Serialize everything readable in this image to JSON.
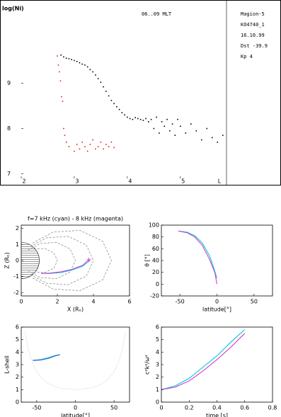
{
  "chart_data": [
    {
      "type": "scatter",
      "title": "06..09 MLT",
      "ylabel": "log(Ni)",
      "xlabel": "L",
      "annotations": [
        "Magion-5",
        "KO4740_1",
        "16.10.99",
        "Dst -39.9",
        "Kp    4"
      ],
      "xlim": [
        2,
        5.87
      ],
      "ylim": [
        6.9,
        10.6
      ],
      "xticks": [
        2,
        3,
        4,
        5
      ],
      "yticks": [
        7,
        8,
        9
      ],
      "series": [
        {
          "color": "#000000",
          "x": [
            2.75,
            2.8,
            2.85,
            2.9,
            2.95,
            3.0,
            3.05,
            3.1,
            3.15,
            3.2,
            3.25,
            3.3,
            3.35,
            3.4,
            3.45,
            3.5,
            3.55,
            3.6,
            3.65,
            3.7,
            3.75,
            3.8,
            3.85,
            3.9,
            3.95,
            4.0,
            4.05,
            4.1,
            4.15,
            4.2,
            4.25,
            4.3,
            4.35,
            4.4,
            4.45,
            4.5,
            4.55,
            4.6,
            4.65,
            4.7,
            4.75,
            4.8,
            4.85,
            4.9,
            4.95,
            5.0,
            5.1,
            5.2,
            5.3,
            5.4,
            5.5,
            5.6,
            5.7,
            5.8
          ],
          "values": [
            9.62,
            9.58,
            9.55,
            9.54,
            9.52,
            9.5,
            9.48,
            9.45,
            9.42,
            9.4,
            9.36,
            9.3,
            9.25,
            9.18,
            9.1,
            9.02,
            8.92,
            8.82,
            8.72,
            8.62,
            8.55,
            8.48,
            8.42,
            8.35,
            8.3,
            8.25,
            8.22,
            8.2,
            8.24,
            8.22,
            8.2,
            8.18,
            8.22,
            8.15,
            8.2,
            8.0,
            8.25,
            7.9,
            8.15,
            8.05,
            8.2,
            7.95,
            8.1,
            7.85,
            8.2,
            8.05,
            7.9,
            8.1,
            7.95,
            7.75,
            8.0,
            7.8,
            7.7,
            7.85
          ]
        },
        {
          "color": "#e02020",
          "x": [
            2.68,
            2.7,
            2.72,
            2.74,
            2.76,
            2.78,
            2.8,
            2.82,
            2.85,
            2.9,
            3.0,
            3.05,
            3.1,
            3.15,
            3.2,
            3.25,
            3.3,
            3.35,
            3.4,
            3.45,
            3.5,
            3.55,
            3.6,
            3.65,
            3.7,
            3.75
          ],
          "values": [
            9.6,
            9.4,
            9.25,
            9.05,
            8.7,
            8.6,
            8.0,
            7.85,
            7.7,
            7.6,
            7.5,
            7.65,
            7.55,
            7.7,
            7.6,
            7.5,
            7.65,
            7.75,
            7.55,
            7.6,
            7.7,
            7.55,
            7.65,
            7.6,
            7.7,
            7.58
          ]
        }
      ]
    },
    {
      "type": "line",
      "title": "f=7 kHz (cyan) - 8 kHz (magenta)",
      "xlabel": "X (Rₑ)",
      "ylabel": "Z (Rₑ)",
      "xlim": [
        0,
        6
      ],
      "ylim": [
        -2.2,
        2.2
      ],
      "xticks": [
        0,
        2,
        4,
        6
      ],
      "yticks": [
        -2,
        -1,
        0,
        1,
        2
      ],
      "earth": true,
      "series": [
        {
          "color": "#808080",
          "dash": true,
          "x": [
            0.707,
            1.299,
            1.802,
            2,
            1.802,
            1.299,
            0.707
          ],
          "values": [
            0.707,
            0.75,
            0.483,
            0,
            -0.483,
            -0.75,
            -0.707
          ]
        },
        {
          "color": "#808080",
          "dash": true,
          "x": [
            0.375,
            1.061,
            1.949,
            2.704,
            3,
            2.704,
            1.949,
            1.061,
            0.375
          ],
          "values": [
            0.65,
            1.061,
            1.125,
            0.725,
            0,
            -0.725,
            -1.125,
            -1.061,
            -0.65
          ]
        },
        {
          "color": "#808080",
          "dash": true,
          "x": [
            0.5,
            1.414,
            2.598,
            3.605,
            4,
            3.605,
            2.598,
            1.414,
            0.5
          ],
          "values": [
            0.866,
            1.414,
            1.5,
            0.966,
            0,
            -0.966,
            -1.5,
            -1.414,
            -0.866
          ]
        },
        {
          "color": "#808080",
          "dash": true,
          "x": [
            0.625,
            1.768,
            3.248,
            4.506,
            5,
            4.506,
            3.248,
            1.768,
            0.625
          ],
          "values": [
            1.083,
            1.768,
            1.875,
            1.208,
            0,
            -1.208,
            -1.875,
            -1.768,
            -1.083
          ]
        },
        {
          "color": "#00c8d8",
          "x": [
            3.8,
            3.4,
            2.8,
            2.2,
            1.6,
            1.1
          ],
          "values": [
            0,
            -0.35,
            -0.6,
            -0.75,
            -0.8,
            -0.8
          ]
        },
        {
          "color": "#d040d0",
          "marker": true,
          "x": [
            3.75,
            3.4,
            2.8,
            2.2,
            1.6,
            1.1
          ],
          "values": [
            0.05,
            -0.3,
            -0.55,
            -0.7,
            -0.78,
            -0.8
          ]
        }
      ]
    },
    {
      "type": "line",
      "xlabel": "latitude[°]",
      "ylabel": "θ [°]",
      "xlim": [
        -75,
        75
      ],
      "ylim": [
        -20,
        100
      ],
      "xticks": [
        -50,
        0,
        50
      ],
      "yticks": [
        -20,
        0,
        20,
        40,
        60,
        80,
        100
      ],
      "series": [
        {
          "color": "#00c8d8",
          "x": [
            -52,
            -40,
            -30,
            -20,
            -10,
            -5,
            0
          ],
          "values": [
            90,
            88,
            82,
            70,
            48,
            30,
            10
          ]
        },
        {
          "color": "#d040d0",
          "x": [
            -52,
            -40,
            -30,
            -20,
            -10,
            -3,
            0
          ],
          "values": [
            90,
            87,
            80,
            66,
            42,
            20,
            0
          ]
        }
      ]
    },
    {
      "type": "line",
      "xlabel": "latitude[°]",
      "ylabel": "L-shell",
      "xlim": [
        -70,
        70
      ],
      "ylim": [
        0,
        6
      ],
      "xticks": [
        -50,
        0,
        50
      ],
      "yticks": [
        0,
        1,
        2,
        3,
        4,
        5,
        6
      ],
      "series": [
        {
          "color": "#b0b0b0",
          "dot": true,
          "x": [
            -65,
            -60,
            -55,
            -50,
            -40,
            -30,
            -20,
            0,
            20,
            30,
            40,
            50,
            55,
            60,
            65
          ],
          "values": [
            5.6,
            4,
            3.04,
            2.42,
            1.7,
            1.33,
            1.13,
            1,
            1.13,
            1.33,
            1.7,
            2.42,
            3.04,
            4,
            5.6
          ]
        },
        {
          "color": "#00c8d8",
          "x": [
            -55,
            -45,
            -35,
            -25,
            -20
          ],
          "values": [
            3.35,
            3.4,
            3.55,
            3.75,
            3.8
          ]
        },
        {
          "color": "#4060d0",
          "x": [
            -55,
            -45,
            -35,
            -25,
            -20
          ],
          "values": [
            3.33,
            3.36,
            3.5,
            3.72,
            3.78
          ]
        }
      ]
    },
    {
      "type": "line",
      "xlabel": "time [s]",
      "ylabel": "c²k²/ω²",
      "xlim": [
        0,
        0.8
      ],
      "ylim": [
        0,
        6
      ],
      "xticks": [
        0,
        0.2,
        0.4,
        0.6,
        0.8
      ],
      "yticks": [
        0,
        1,
        2,
        3,
        4,
        5,
        6
      ],
      "series": [
        {
          "color": "#00c8d8",
          "x": [
            0,
            0.1,
            0.2,
            0.3,
            0.4,
            0.5,
            0.6
          ],
          "values": [
            1,
            1.3,
            1.9,
            2.8,
            3.7,
            4.8,
            5.8
          ]
        },
        {
          "color": "#d040d0",
          "x": [
            0,
            0.1,
            0.2,
            0.3,
            0.4,
            0.5,
            0.6
          ],
          "values": [
            1,
            1.2,
            1.7,
            2.5,
            3.4,
            4.4,
            5.5
          ]
        }
      ]
    }
  ]
}
